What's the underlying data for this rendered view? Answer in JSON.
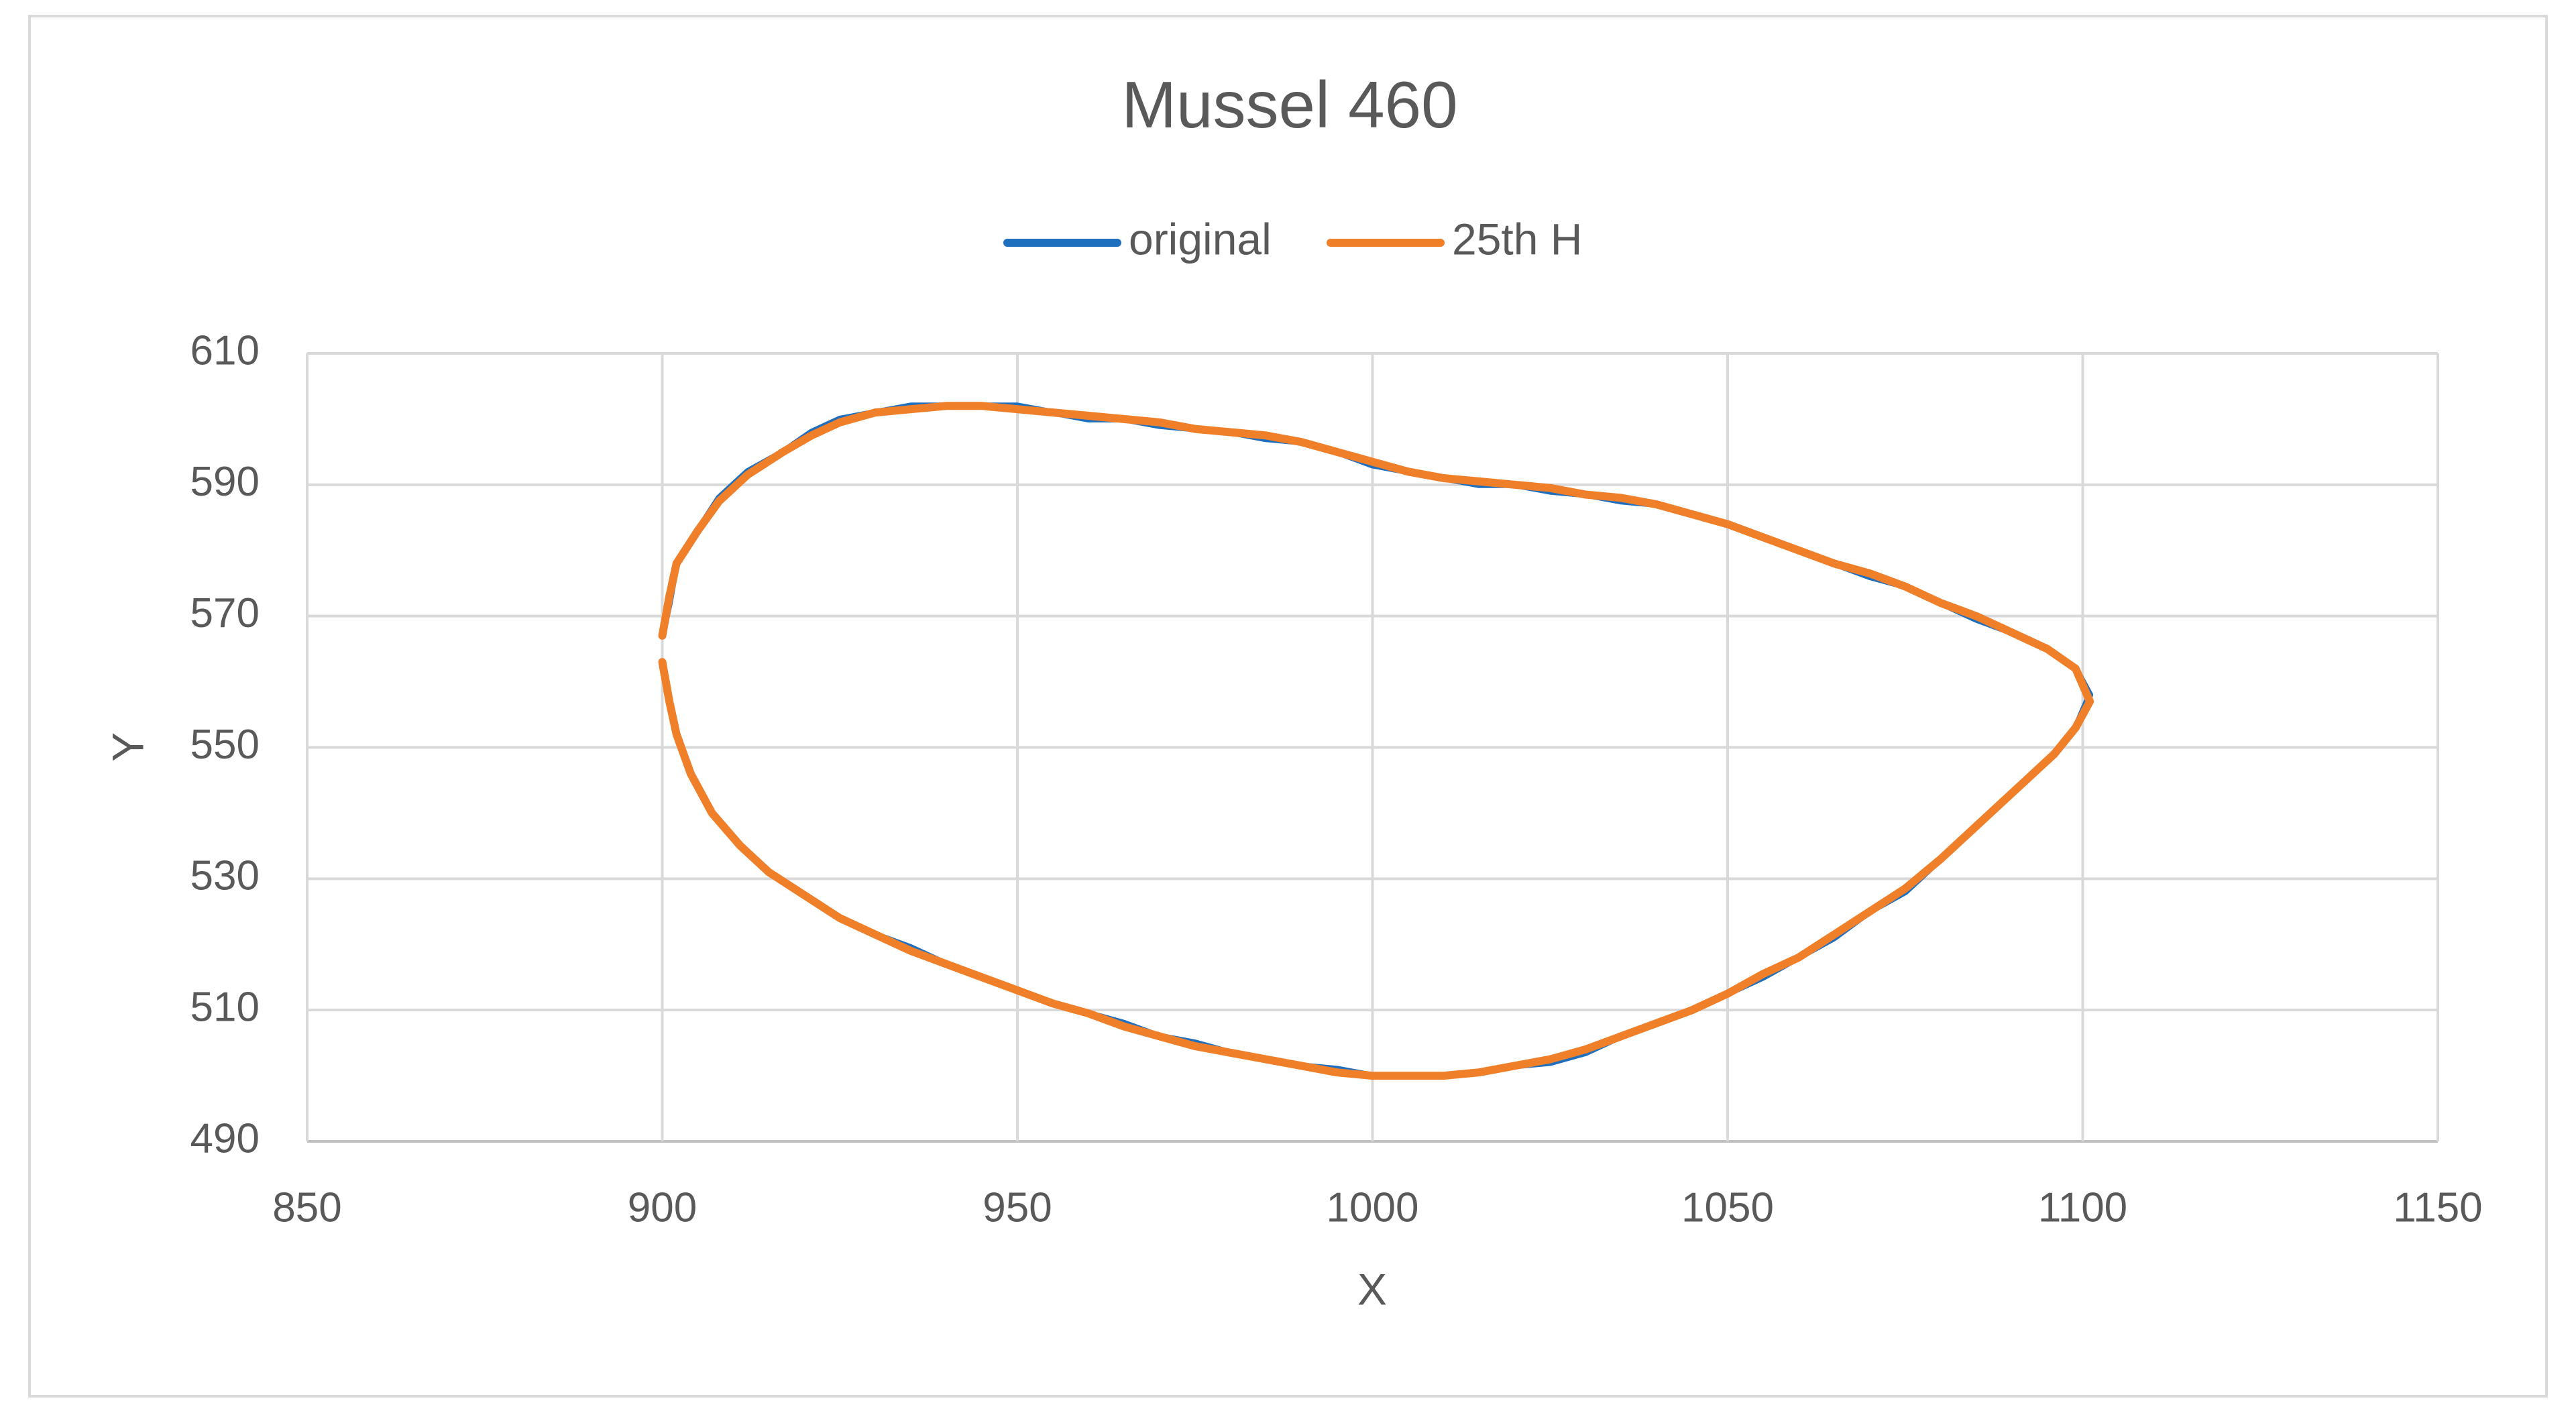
{
  "chart_data": {
    "type": "line",
    "title": "Mussel 460",
    "x_label": "X",
    "y_label": "Y",
    "x": [
      900,
      901,
      902,
      905,
      908,
      912,
      917,
      921,
      925,
      930,
      935,
      940,
      945,
      950,
      955,
      960,
      965,
      970,
      975,
      980,
      985,
      990,
      995,
      1000,
      1005,
      1010,
      1015,
      1020,
      1025,
      1030,
      1035,
      1040,
      1045,
      1050,
      1055,
      1060,
      1065,
      1070,
      1075,
      1080,
      1085,
      1090,
      1095,
      1099,
      1101,
      1099,
      1096,
      1092,
      1088,
      1084,
      1080,
      1075,
      1070,
      1065,
      1060,
      1055,
      1050,
      1045,
      1040,
      1035,
      1030,
      1025,
      1020,
      1015,
      1010,
      1005,
      1000,
      995,
      990,
      985,
      980,
      975,
      970,
      965,
      960,
      955,
      950,
      945,
      940,
      935,
      930,
      925,
      920,
      915,
      911,
      907,
      904,
      902,
      901,
      900
    ],
    "series": [
      {
        "name": "original",
        "color": "#1f6fbf",
        "values": [
          567,
          572,
          578,
          583,
          588,
          592,
          595,
          598,
          600,
          601,
          602,
          602,
          602,
          602,
          601,
          600,
          600,
          599,
          598.5,
          598,
          597,
          596.5,
          595,
          593,
          592,
          591,
          590,
          590,
          589,
          588.5,
          587.5,
          587,
          585.5,
          584,
          582,
          580,
          578,
          576,
          574.5,
          572,
          569.5,
          567.5,
          565,
          562,
          558,
          553,
          549,
          545,
          541,
          537,
          533,
          528,
          525,
          521,
          518,
          515,
          512.5,
          510,
          508,
          506,
          503.5,
          502,
          501.5,
          500.5,
          500,
          500,
          500,
          501,
          501.5,
          502.5,
          503.5,
          505,
          506,
          508,
          509.5,
          511,
          513,
          515,
          517,
          519.5,
          521.5,
          524,
          527.5,
          531,
          535,
          540,
          546,
          552,
          557,
          563
        ]
      },
      {
        "name": "25th H",
        "color": "#f07f2a",
        "values": [
          567,
          573,
          578,
          583,
          587.5,
          591.5,
          595,
          597.5,
          599.5,
          601,
          601.5,
          602,
          602,
          601.5,
          601,
          600.5,
          600,
          599.5,
          598.5,
          598,
          597.5,
          596.5,
          595,
          593.5,
          592,
          591,
          590.5,
          590,
          589.5,
          588.5,
          588,
          587,
          585.5,
          584,
          582,
          580,
          578,
          576.5,
          574.5,
          572,
          570,
          567.5,
          565,
          562,
          557,
          553,
          549,
          545,
          541,
          537,
          533,
          528.5,
          525,
          521.5,
          518,
          515.5,
          512.5,
          510,
          508,
          506,
          504,
          502.5,
          501.5,
          500.5,
          500,
          500,
          500,
          500.5,
          501.5,
          502.5,
          503.5,
          504.5,
          506,
          507.5,
          509.5,
          511,
          513,
          515,
          517,
          519,
          521.5,
          524,
          527.5,
          531,
          535,
          540,
          546,
          552,
          557,
          563
        ]
      }
    ],
    "xlim": [
      850,
      1150
    ],
    "xticks": [
      850,
      900,
      950,
      1000,
      1050,
      1100,
      1150
    ],
    "ylim": [
      490,
      610
    ],
    "yticks": [
      490,
      510,
      530,
      550,
      570,
      590,
      610
    ],
    "grid": true,
    "legend": "top"
  }
}
